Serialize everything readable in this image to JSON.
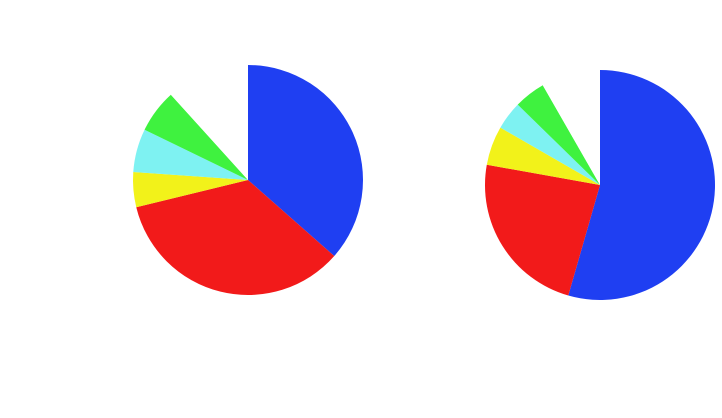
{
  "chart_data": {
    "type": "pie",
    "charts": [
      {
        "panel": "left",
        "title": "",
        "slices": [
          {
            "label": "",
            "value": 0.365,
            "color": "#1f3ff2"
          },
          {
            "label": "",
            "value": 0.347,
            "color": "#f21a1a"
          },
          {
            "label": "",
            "value": 0.049,
            "color": "#f2f21a"
          },
          {
            "label": "",
            "value": 0.061,
            "color": "#7ef2f2"
          },
          {
            "label": "",
            "value": 0.061,
            "color": "#3ff23f"
          },
          {
            "label": "",
            "value": 0.117,
            "color": "#ffffff"
          }
        ]
      },
      {
        "panel": "right",
        "title": "",
        "slices": [
          {
            "label": "",
            "value": 0.545,
            "color": "#1f3ff2"
          },
          {
            "label": "",
            "value": 0.234,
            "color": "#f21a1a"
          },
          {
            "label": "",
            "value": 0.055,
            "color": "#f2f21a"
          },
          {
            "label": "",
            "value": 0.04,
            "color": "#7ef2f2"
          },
          {
            "label": "",
            "value": 0.044,
            "color": "#3ff23f"
          },
          {
            "label": "",
            "value": 0.083,
            "color": "#ffffff"
          }
        ]
      }
    ],
    "legend": "none",
    "start_angle_deg": 0,
    "direction": "clockwise"
  },
  "caption": "",
  "source": ""
}
